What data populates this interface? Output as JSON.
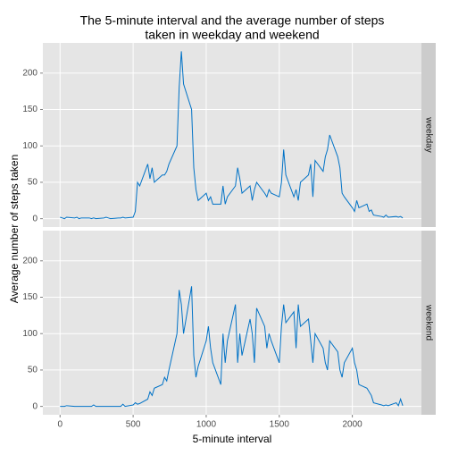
{
  "chart_data": {
    "type": "line",
    "title_lines": [
      "The 5-minute interval and the average number of steps",
      "taken in weekday and weekend"
    ],
    "x_label": "5-minute interval",
    "y_label": "Average number of steps taken",
    "x": [
      0,
      15,
      30,
      45,
      100,
      115,
      130,
      145,
      200,
      215,
      230,
      245,
      300,
      315,
      330,
      345,
      400,
      415,
      430,
      445,
      500,
      515,
      530,
      545,
      600,
      615,
      630,
      645,
      700,
      715,
      730,
      745,
      800,
      815,
      830,
      845,
      900,
      915,
      930,
      945,
      1000,
      1015,
      1030,
      1045,
      1100,
      1115,
      1130,
      1145,
      1200,
      1215,
      1230,
      1245,
      1300,
      1315,
      1330,
      1345,
      1400,
      1415,
      1430,
      1445,
      1500,
      1515,
      1530,
      1545,
      1600,
      1615,
      1630,
      1645,
      1700,
      1715,
      1730,
      1745,
      1800,
      1815,
      1830,
      1845,
      1900,
      1915,
      1930,
      1945,
      2000,
      2015,
      2030,
      2045,
      2100,
      2115,
      2130,
      2145,
      2200,
      2215,
      2230,
      2245,
      2300,
      2315,
      2330,
      2345
    ],
    "series": [
      {
        "name": "weekday",
        "color": "#0072c6",
        "values": [
          2,
          1,
          0,
          2,
          1,
          2,
          0,
          1,
          1,
          0,
          1,
          0,
          1,
          2,
          1,
          0,
          1,
          1,
          2,
          1,
          2,
          10,
          50,
          45,
          75,
          55,
          70,
          50,
          60,
          60,
          65,
          75,
          100,
          180,
          230,
          185,
          150,
          70,
          40,
          25,
          35,
          25,
          30,
          20,
          20,
          45,
          20,
          30,
          45,
          70,
          55,
          35,
          45,
          25,
          40,
          50,
          35,
          30,
          40,
          35,
          30,
          50,
          95,
          60,
          30,
          40,
          25,
          50,
          60,
          75,
          30,
          80,
          65,
          85,
          95,
          115,
          85,
          70,
          35,
          30,
          15,
          10,
          25,
          15,
          20,
          10,
          12,
          5,
          3,
          2,
          5,
          2,
          3,
          2,
          3,
          1
        ]
      },
      {
        "name": "weekend",
        "color": "#0072c6",
        "values": [
          0,
          0,
          0,
          1,
          0,
          0,
          0,
          0,
          0,
          0,
          2,
          0,
          0,
          0,
          0,
          0,
          0,
          0,
          3,
          0,
          2,
          5,
          3,
          4,
          10,
          20,
          15,
          25,
          30,
          40,
          35,
          50,
          100,
          160,
          140,
          100,
          165,
          70,
          40,
          55,
          90,
          110,
          80,
          60,
          30,
          100,
          60,
          90,
          140,
          60,
          100,
          70,
          120,
          100,
          60,
          135,
          110,
          80,
          100,
          90,
          60,
          110,
          140,
          115,
          130,
          80,
          140,
          110,
          120,
          90,
          60,
          100,
          80,
          60,
          50,
          90,
          75,
          50,
          40,
          60,
          80,
          60,
          50,
          30,
          25,
          20,
          15,
          5,
          2,
          1,
          2,
          1,
          5,
          1,
          10,
          1
        ]
      }
    ],
    "xlim": [
      -117.75,
      2472.75
    ],
    "ylim": [
      -11.5,
      241.5
    ],
    "xticks": [
      0,
      500,
      1000,
      1500,
      2000
    ],
    "yticks": [
      0,
      50,
      100,
      150,
      200
    ],
    "grid": true
  }
}
